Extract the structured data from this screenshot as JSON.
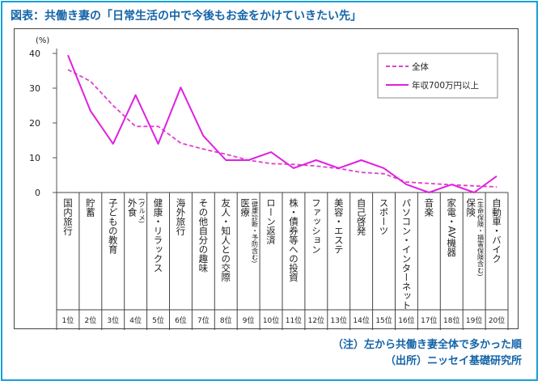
{
  "title": "図表：共働き妻の「日常生活の中で今後もお金をかけていきたい先」",
  "notes": {
    "note1": "（注）左から共働き妻全体で多かった順",
    "note2": "（出所）ニッセイ基礎研究所"
  },
  "chart_data": {
    "type": "line",
    "yunit": "(%)",
    "ylim": [
      0,
      40
    ],
    "yticks": [
      "0",
      "10",
      "20",
      "30",
      "40"
    ],
    "legend_position": "top-right",
    "categories": [
      {
        "lines": [
          "国内旅行"
        ],
        "rank": "1位"
      },
      {
        "lines": [
          "貯蓄"
        ],
        "rank": "2位"
      },
      {
        "lines": [
          "子どもの教育"
        ],
        "rank": "3位"
      },
      {
        "lines": [
          "外食",
          "(グルメ)"
        ],
        "rank": "4位"
      },
      {
        "lines": [
          "健康・リラックス"
        ],
        "rank": "5位"
      },
      {
        "lines": [
          "海外旅行"
        ],
        "rank": "6位"
      },
      {
        "lines": [
          "その他自分の趣味"
        ],
        "rank": "7位"
      },
      {
        "lines": [
          "友人・知人との交際"
        ],
        "rank": "8位"
      },
      {
        "lines": [
          "医療",
          "(健康診断・予防含む)"
        ],
        "rank": "9位"
      },
      {
        "lines": [
          "ローン返済"
        ],
        "rank": "10位"
      },
      {
        "lines": [
          "株・債券等への投資"
        ],
        "rank": "11位"
      },
      {
        "lines": [
          "ファッション"
        ],
        "rank": "12位"
      },
      {
        "lines": [
          "美容・エステ"
        ],
        "rank": "13位"
      },
      {
        "lines": [
          "自己啓発"
        ],
        "rank": "14位"
      },
      {
        "lines": [
          "スポーツ"
        ],
        "rank": "15位"
      },
      {
        "lines": [
          "パソコン・インターネット"
        ],
        "rank": "16位"
      },
      {
        "lines": [
          "音楽"
        ],
        "rank": "17位"
      },
      {
        "lines": [
          "家電・AV機器"
        ],
        "rank": "18位"
      },
      {
        "lines": [
          "保険",
          "(生命保険・損害保険含む)"
        ],
        "rank": "19位"
      },
      {
        "lines": [
          "自動車・バイク"
        ],
        "rank": "20位"
      }
    ],
    "series": [
      {
        "name": "全体",
        "color": "#e040d0",
        "dash": true,
        "values": [
          35.3,
          32.0,
          25.0,
          19.0,
          19.0,
          14.2,
          12.5,
          11.0,
          9.3,
          8.3,
          8.1,
          7.6,
          6.9,
          5.8,
          5.4,
          3.0,
          2.6,
          2.2,
          1.9,
          1.6
        ]
      },
      {
        "name": "年収700万円以上",
        "color": "#e020e0",
        "dash": false,
        "values": [
          39.5,
          23.5,
          14.0,
          28.0,
          14.0,
          30.2,
          16.3,
          9.3,
          9.3,
          11.6,
          7.0,
          9.3,
          7.0,
          9.3,
          7.0,
          2.3,
          0.0,
          2.3,
          0.0,
          4.7
        ]
      }
    ]
  }
}
